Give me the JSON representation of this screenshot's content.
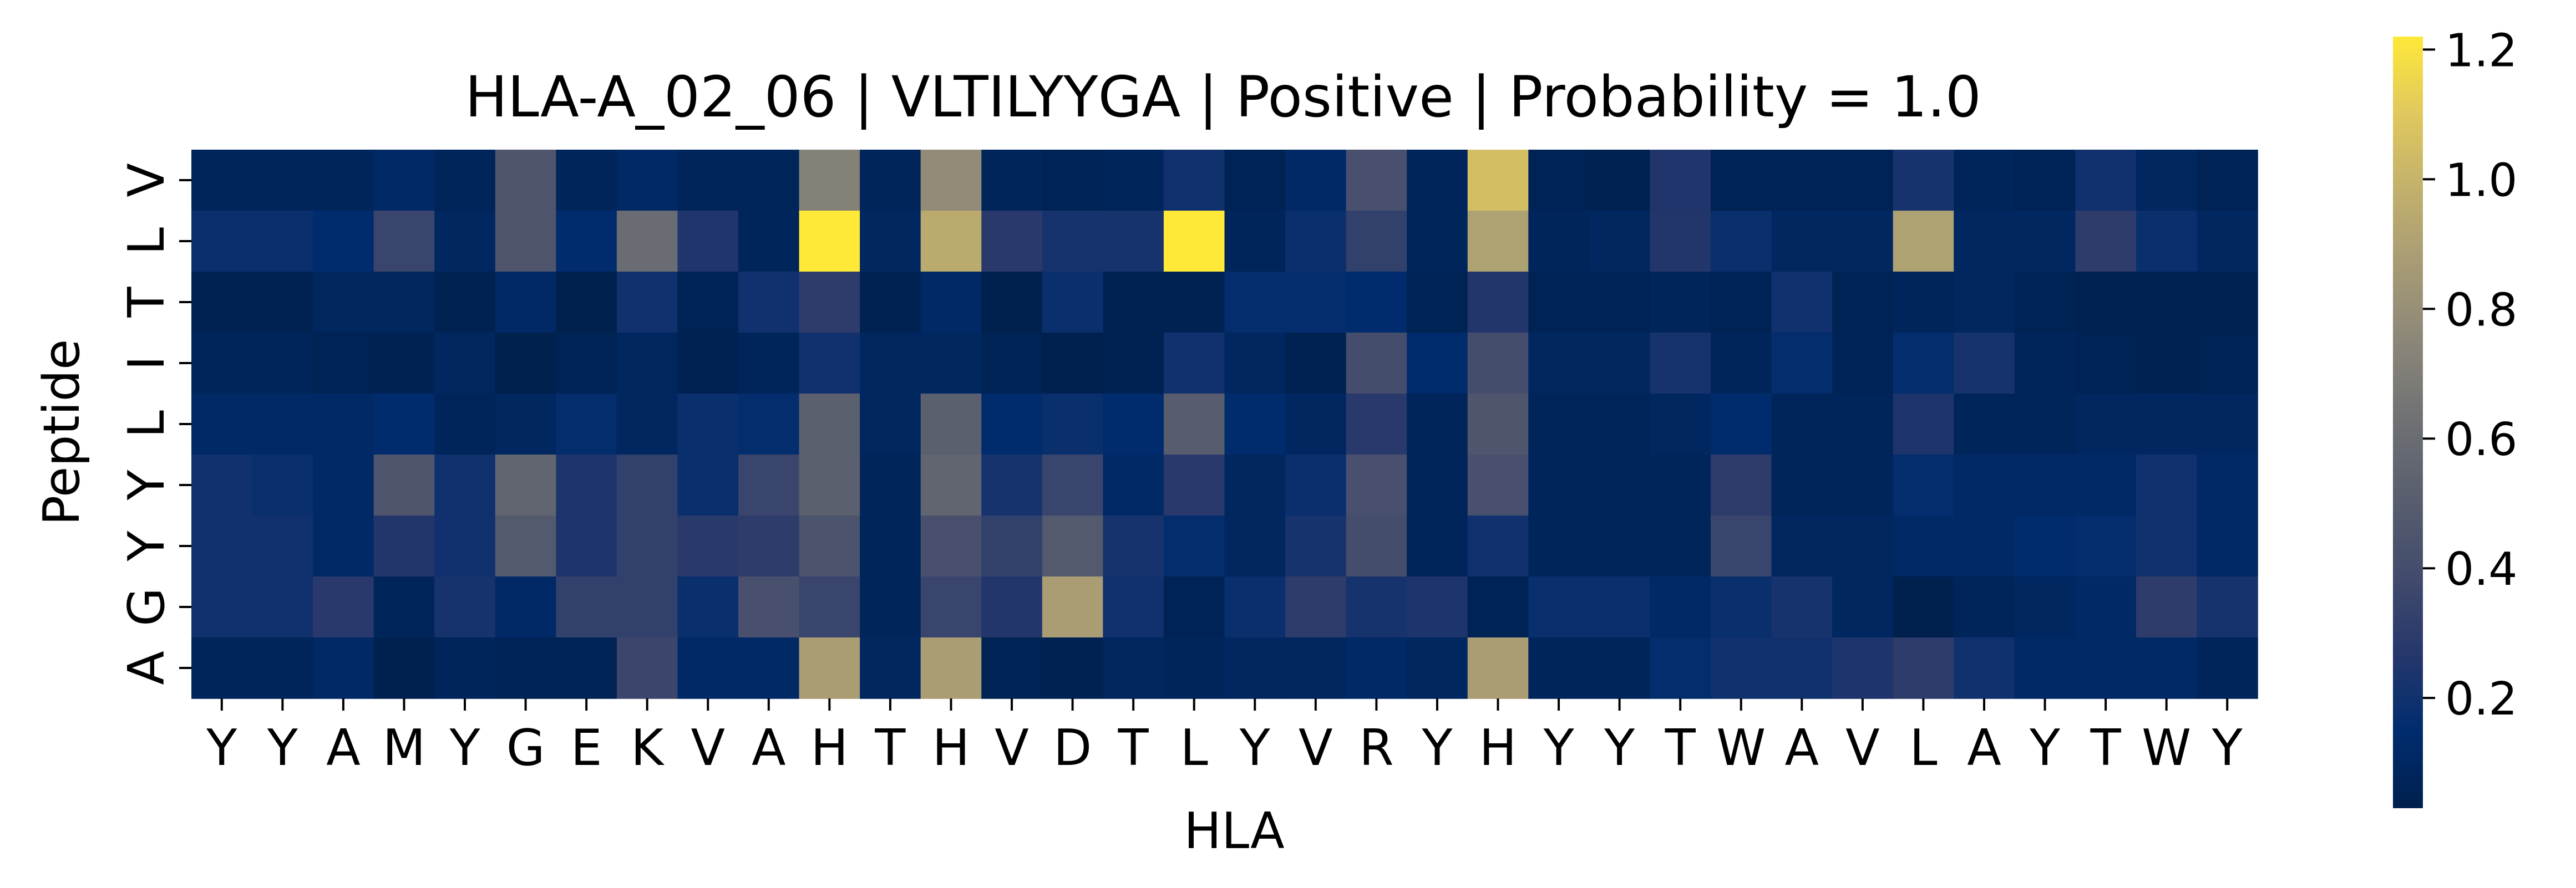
{
  "chart_data": {
    "type": "heatmap",
    "title": "HLA-A_02_06 | VLTILYYGA | Positive | Probability = 1.0",
    "xlabel": "HLA",
    "ylabel": "Peptide",
    "x_labels": [
      "Y",
      "Y",
      "A",
      "M",
      "Y",
      "G",
      "E",
      "K",
      "V",
      "A",
      "H",
      "T",
      "H",
      "V",
      "D",
      "T",
      "L",
      "Y",
      "V",
      "R",
      "Y",
      "H",
      "Y",
      "Y",
      "T",
      "W",
      "A",
      "V",
      "L",
      "A",
      "Y",
      "T",
      "W",
      "Y"
    ],
    "y_labels": [
      "V",
      "L",
      "T",
      "I",
      "L",
      "Y",
      "Y",
      "G",
      "A"
    ],
    "colormap": "cividis",
    "vmin": 0.03,
    "vmax": 1.22,
    "colorbar_ticks": [
      "0.2",
      "0.4",
      "0.6",
      "0.8",
      "1.0",
      "1.2"
    ],
    "colorbar_tick_values": [
      0.2,
      0.4,
      0.6,
      0.8,
      1.0,
      1.2
    ],
    "values": [
      [
        0.08,
        0.08,
        0.08,
        0.12,
        0.08,
        0.45,
        0.08,
        0.12,
        0.08,
        0.08,
        0.72,
        0.08,
        0.78,
        0.08,
        0.06,
        0.08,
        0.2,
        0.06,
        0.12,
        0.42,
        0.08,
        1.05,
        0.06,
        0.05,
        0.25,
        0.06,
        0.06,
        0.06,
        0.22,
        0.08,
        0.06,
        0.2,
        0.1,
        0.06
      ],
      [
        0.18,
        0.18,
        0.15,
        0.35,
        0.1,
        0.45,
        0.15,
        0.6,
        0.25,
        0.08,
        1.22,
        0.1,
        0.95,
        0.28,
        0.22,
        0.22,
        1.22,
        0.08,
        0.18,
        0.32,
        0.08,
        0.9,
        0.08,
        0.1,
        0.26,
        0.18,
        0.1,
        0.1,
        0.9,
        0.1,
        0.1,
        0.3,
        0.18,
        0.1
      ],
      [
        0.05,
        0.05,
        0.1,
        0.1,
        0.05,
        0.12,
        0.03,
        0.2,
        0.06,
        0.2,
        0.3,
        0.05,
        0.12,
        0.03,
        0.18,
        0.05,
        0.05,
        0.16,
        0.16,
        0.14,
        0.06,
        0.26,
        0.06,
        0.06,
        0.08,
        0.06,
        0.2,
        0.06,
        0.08,
        0.1,
        0.06,
        0.05,
        0.05,
        0.05
      ],
      [
        0.08,
        0.08,
        0.06,
        0.05,
        0.1,
        0.03,
        0.06,
        0.1,
        0.05,
        0.08,
        0.2,
        0.1,
        0.1,
        0.06,
        0.04,
        0.05,
        0.2,
        0.1,
        0.05,
        0.4,
        0.14,
        0.4,
        0.1,
        0.1,
        0.22,
        0.08,
        0.16,
        0.06,
        0.16,
        0.22,
        0.08,
        0.06,
        0.05,
        0.06
      ],
      [
        0.12,
        0.12,
        0.12,
        0.15,
        0.08,
        0.1,
        0.16,
        0.1,
        0.18,
        0.16,
        0.52,
        0.1,
        0.52,
        0.14,
        0.18,
        0.14,
        0.5,
        0.14,
        0.1,
        0.28,
        0.08,
        0.45,
        0.08,
        0.08,
        0.1,
        0.14,
        0.08,
        0.08,
        0.24,
        0.08,
        0.08,
        0.1,
        0.1,
        0.1
      ],
      [
        0.2,
        0.18,
        0.12,
        0.45,
        0.2,
        0.55,
        0.24,
        0.32,
        0.18,
        0.35,
        0.52,
        0.08,
        0.55,
        0.22,
        0.35,
        0.12,
        0.28,
        0.1,
        0.18,
        0.42,
        0.08,
        0.42,
        0.08,
        0.08,
        0.08,
        0.3,
        0.08,
        0.08,
        0.16,
        0.12,
        0.12,
        0.12,
        0.2,
        0.12
      ],
      [
        0.2,
        0.2,
        0.12,
        0.26,
        0.2,
        0.48,
        0.24,
        0.32,
        0.28,
        0.3,
        0.44,
        0.08,
        0.42,
        0.32,
        0.48,
        0.22,
        0.16,
        0.1,
        0.22,
        0.4,
        0.08,
        0.2,
        0.08,
        0.08,
        0.08,
        0.35,
        0.1,
        0.1,
        0.12,
        0.12,
        0.14,
        0.16,
        0.2,
        0.12
      ],
      [
        0.2,
        0.2,
        0.28,
        0.08,
        0.22,
        0.12,
        0.32,
        0.32,
        0.18,
        0.42,
        0.35,
        0.08,
        0.35,
        0.26,
        0.88,
        0.2,
        0.06,
        0.18,
        0.3,
        0.22,
        0.24,
        0.06,
        0.18,
        0.18,
        0.12,
        0.18,
        0.22,
        0.1,
        0.03,
        0.08,
        0.1,
        0.12,
        0.3,
        0.22
      ],
      [
        0.08,
        0.08,
        0.12,
        0.04,
        0.08,
        0.06,
        0.06,
        0.36,
        0.12,
        0.12,
        0.88,
        0.1,
        0.88,
        0.06,
        0.05,
        0.1,
        0.08,
        0.1,
        0.1,
        0.12,
        0.1,
        0.88,
        0.08,
        0.08,
        0.16,
        0.2,
        0.2,
        0.24,
        0.3,
        0.2,
        0.12,
        0.12,
        0.12,
        0.08
      ]
    ]
  }
}
